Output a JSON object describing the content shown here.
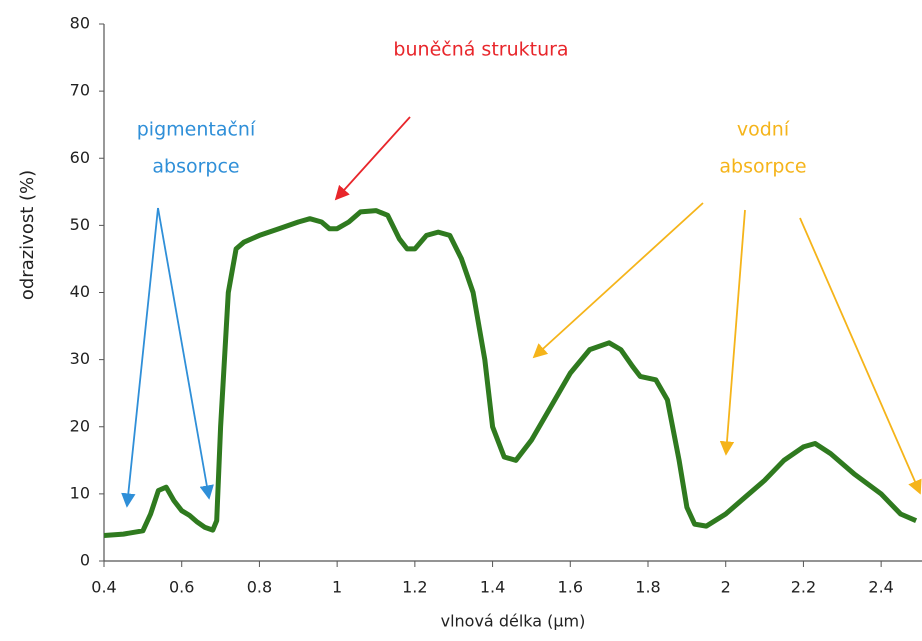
{
  "chart_data": {
    "type": "line",
    "xlabel": "vlnová délka (μm)",
    "ylabel": "odrazivost    (%)",
    "x": [
      0.4,
      0.45,
      0.5,
      0.52,
      0.54,
      0.56,
      0.58,
      0.6,
      0.62,
      0.64,
      0.66,
      0.68,
      0.69,
      0.7,
      0.72,
      0.74,
      0.76,
      0.8,
      0.85,
      0.9,
      0.93,
      0.96,
      0.98,
      1.0,
      1.03,
      1.06,
      1.1,
      1.13,
      1.16,
      1.18,
      1.2,
      1.23,
      1.26,
      1.29,
      1.32,
      1.35,
      1.38,
      1.4,
      1.43,
      1.46,
      1.5,
      1.55,
      1.6,
      1.65,
      1.7,
      1.73,
      1.76,
      1.78,
      1.82,
      1.85,
      1.88,
      1.9,
      1.92,
      1.95,
      2.0,
      2.05,
      2.1,
      2.15,
      2.2,
      2.23,
      2.27,
      2.33,
      2.4,
      2.45,
      2.49
    ],
    "series": [
      {
        "name": "odrazivost",
        "color": "#2f7a1f",
        "values": [
          3.8,
          4.0,
          4.5,
          7,
          10.5,
          11,
          9,
          7.5,
          6.8,
          5.8,
          5,
          4.6,
          6,
          20,
          40,
          46.5,
          47.5,
          48.5,
          49.5,
          50.5,
          51,
          50.5,
          49.5,
          49.5,
          50.5,
          52,
          52.2,
          51.5,
          48,
          46.5,
          46.5,
          48.5,
          49,
          48.5,
          45,
          40,
          30,
          20,
          15.5,
          15,
          18,
          23,
          28,
          31.5,
          32.5,
          31.5,
          29,
          27.5,
          27,
          24,
          15,
          8,
          5.5,
          5.2,
          7,
          9.5,
          12,
          15,
          17,
          17.5,
          16,
          13,
          10,
          7,
          6
        ]
      }
    ],
    "xlim": [
      0.4,
      2.5
    ],
    "xticks": [
      0.4,
      0.6,
      0.8,
      1,
      1.2,
      1.4,
      1.6,
      1.8,
      2,
      2.2,
      2.4
    ],
    "ylim": [
      0,
      80
    ],
    "yticks": [
      0,
      10,
      20,
      30,
      40,
      50,
      60,
      70,
      80
    ],
    "grid": false,
    "annotations": [
      {
        "lines": [
          "buněčná struktura"
        ],
        "color": "#e8262b"
      },
      {
        "lines": [
          "pigmentační",
          "absorpce"
        ],
        "color": "#2f8fd8"
      },
      {
        "lines": [
          "vodní",
          "absorpce"
        ],
        "color": "#f5b41a"
      }
    ]
  }
}
